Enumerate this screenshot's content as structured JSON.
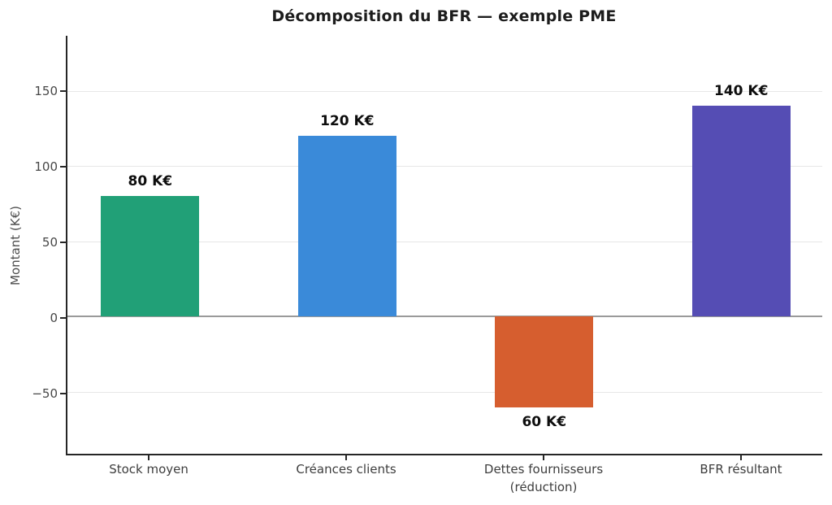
{
  "chart_data": {
    "type": "bar",
    "title": "Décomposition du BFR — exemple PME",
    "xlabel": "",
    "ylabel": "Montant (K€)",
    "categories": [
      "Stock moyen",
      "Créances clients",
      "Dettes fournisseurs\n(réduction)",
      "BFR résultant"
    ],
    "values": [
      80,
      120,
      -60,
      140
    ],
    "bar_labels": [
      "80 K€",
      "120 K€",
      "60 K€",
      "140 K€"
    ],
    "bar_colors": [
      "#21a077",
      "#3a8ad9",
      "#d65e2f",
      "#554db4"
    ],
    "yticks": [
      -50,
      0,
      50,
      100,
      150
    ],
    "ytick_labels": [
      "−50",
      "0",
      "50",
      "100",
      "150"
    ],
    "ylim": [
      -91,
      186.5
    ],
    "grid": true,
    "grid_color": "#e7e7e7",
    "zero_line": true,
    "zero_line_color": "#9a9a9a",
    "axis_color": "#262626",
    "background_color": "#ffffff",
    "legend": "none"
  }
}
